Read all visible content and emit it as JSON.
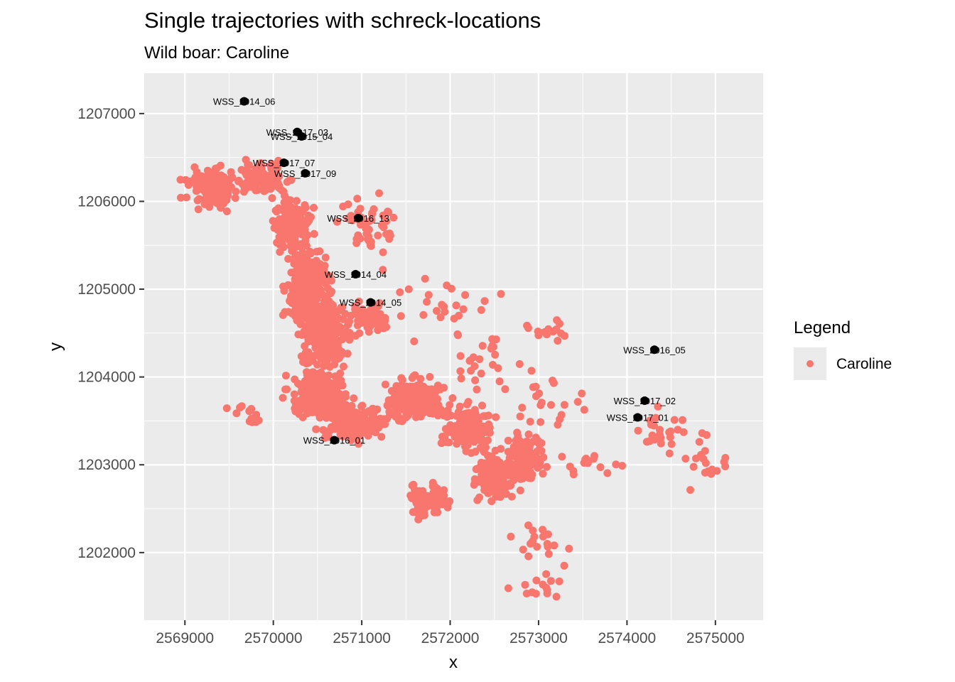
{
  "chart_data": {
    "type": "scatter",
    "title": "Single trajectories with schreck-locations",
    "subtitle": "Wild boar: Caroline",
    "xlabel": "x",
    "ylabel": "y",
    "xlim": [
      2568540,
      2575540
    ],
    "ylim": [
      1201230,
      1207460
    ],
    "x_ticks": [
      2569000,
      2570000,
      2571000,
      2572000,
      2573000,
      2574000,
      2575000
    ],
    "y_ticks": [
      1202000,
      1203000,
      1204000,
      1205000,
      1206000,
      1207000
    ],
    "x_tick_labels": [
      "2569000",
      "2570000",
      "2571000",
      "2572000",
      "2573000",
      "2574000",
      "2575000"
    ],
    "y_tick_labels": [
      "1202000",
      "1203000",
      "1204000",
      "1205000",
      "1206000",
      "1207000"
    ],
    "grid": true,
    "legend": {
      "title": "Legend",
      "position": "right",
      "entries": [
        {
          "label": "Caroline",
          "color": "#f8766d"
        }
      ]
    },
    "series": [
      {
        "name": "Caroline",
        "color": "#f8766d",
        "clusters": [
          {
            "x": 2569300,
            "y": 1206150,
            "sx": 230,
            "sy": 180,
            "n": 140
          },
          {
            "x": 2569900,
            "y": 1206250,
            "sx": 250,
            "sy": 150,
            "n": 90
          },
          {
            "x": 2570200,
            "y": 1205700,
            "sx": 180,
            "sy": 250,
            "n": 150
          },
          {
            "x": 2570400,
            "y": 1205000,
            "sx": 200,
            "sy": 380,
            "n": 260
          },
          {
            "x": 2570600,
            "y": 1204500,
            "sx": 220,
            "sy": 300,
            "n": 240
          },
          {
            "x": 2570500,
            "y": 1203800,
            "sx": 250,
            "sy": 220,
            "n": 240
          },
          {
            "x": 2570900,
            "y": 1203500,
            "sx": 330,
            "sy": 180,
            "n": 180
          },
          {
            "x": 2571600,
            "y": 1203750,
            "sx": 280,
            "sy": 200,
            "n": 160
          },
          {
            "x": 2572200,
            "y": 1203400,
            "sx": 220,
            "sy": 220,
            "n": 160
          },
          {
            "x": 2572500,
            "y": 1202850,
            "sx": 170,
            "sy": 200,
            "n": 140
          },
          {
            "x": 2572850,
            "y": 1203100,
            "sx": 180,
            "sy": 250,
            "n": 140
          },
          {
            "x": 2571750,
            "y": 1202600,
            "sx": 170,
            "sy": 150,
            "n": 80
          },
          {
            "x": 2571100,
            "y": 1204700,
            "sx": 200,
            "sy": 160,
            "n": 60
          },
          {
            "x": 2571100,
            "y": 1205700,
            "sx": 280,
            "sy": 300,
            "n": 50
          },
          {
            "x": 2571900,
            "y": 1204800,
            "sx": 550,
            "sy": 300,
            "n": 25
          },
          {
            "x": 2572500,
            "y": 1204200,
            "sx": 300,
            "sy": 250,
            "n": 25
          },
          {
            "x": 2573200,
            "y": 1203700,
            "sx": 350,
            "sy": 300,
            "n": 20
          },
          {
            "x": 2573100,
            "y": 1204550,
            "sx": 250,
            "sy": 100,
            "n": 15
          },
          {
            "x": 2573600,
            "y": 1203000,
            "sx": 300,
            "sy": 200,
            "n": 15
          },
          {
            "x": 2573000,
            "y": 1202200,
            "sx": 250,
            "sy": 400,
            "n": 18
          },
          {
            "x": 2573000,
            "y": 1201600,
            "sx": 250,
            "sy": 130,
            "n": 14
          },
          {
            "x": 2574400,
            "y": 1203300,
            "sx": 300,
            "sy": 230,
            "n": 25
          },
          {
            "x": 2574900,
            "y": 1203000,
            "sx": 220,
            "sy": 350,
            "n": 18
          },
          {
            "x": 2569700,
            "y": 1203550,
            "sx": 150,
            "sy": 100,
            "n": 15
          }
        ]
      },
      {
        "name": "schreck-locations",
        "color": "#000000",
        "points": [
          {
            "label": "WSS_2014_06",
            "x": 2569670,
            "y": 1207140
          },
          {
            "label": "WSS_2017_03",
            "x": 2570270,
            "y": 1206790
          },
          {
            "label": "WSS_2015_04",
            "x": 2570320,
            "y": 1206740
          },
          {
            "label": "WSS_2017_07",
            "x": 2570120,
            "y": 1206440
          },
          {
            "label": "WSS_2017_09",
            "x": 2570360,
            "y": 1206320
          },
          {
            "label": "WSS_2016_13",
            "x": 2570960,
            "y": 1205810
          },
          {
            "label": "WSS_2014_04",
            "x": 2570930,
            "y": 1205170
          },
          {
            "label": "WSS_2014_05",
            "x": 2571100,
            "y": 1204850
          },
          {
            "label": "WSS_2016_05",
            "x": 2574310,
            "y": 1204310
          },
          {
            "label": "WSS_2017_02",
            "x": 2574200,
            "y": 1203730
          },
          {
            "label": "WSS_2017_01",
            "x": 2574120,
            "y": 1203540
          },
          {
            "label": "WSS_2016_01",
            "x": 2570690,
            "y": 1203280
          }
        ]
      }
    ]
  }
}
